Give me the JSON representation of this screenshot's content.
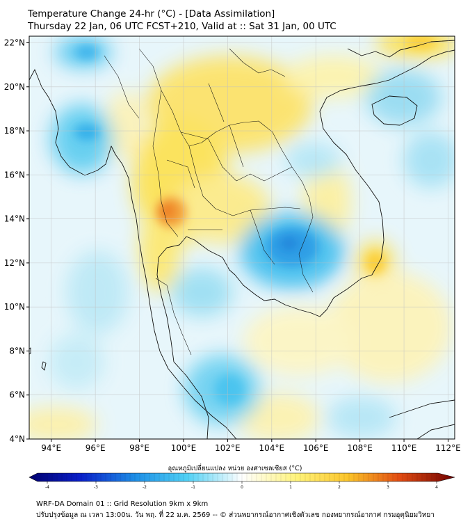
{
  "title": {
    "line1": "Temperature Change 24-hr (°C) - [Data Assimilation]",
    "line2": "Thursday 22 Jan, 06 UTC FCST+210, Valid at :: Sat 31 Jan, 00 UTC"
  },
  "map": {
    "lat_ticks": [
      "22°N",
      "20°N",
      "18°N",
      "16°N",
      "14°N",
      "12°N",
      "10°N",
      "8°N",
      "6°N",
      "4°N"
    ],
    "lon_ticks": [
      "94°E",
      "96°E",
      "98°E",
      "100°E",
      "102°E",
      "104°E",
      "106°E",
      "108°E",
      "110°E",
      "112°E"
    ],
    "lat_range": [
      4,
      22.3
    ],
    "lon_range": [
      93,
      112.3
    ],
    "grid": true
  },
  "colorbar": {
    "label": "อุณหภูมิเปลี่ยนแปลง หน่วย องศาเซลเซียส (°C)",
    "tick_labels": [
      "-4",
      "-3",
      "-2",
      "-1",
      "0",
      "1",
      "2",
      "3",
      "4"
    ],
    "range": [
      -4,
      4
    ],
    "colors": {
      "cold_extreme": "#00006e",
      "cold": "#1565d8",
      "cool": "#35c4f0",
      "neutral": "#ffffff",
      "warm": "#fde84a",
      "hot": "#f08a1c",
      "hot_extreme": "#7a0000"
    }
  },
  "footer": {
    "line1": "WRF-DA Domain 01 :: Grid Resolution 9km x 9km",
    "line2": "ปรับปรุงข้อมูล ณ เวลา 13:00น. วัน พฤ. ที่ 22 ม.ค. 2569 -- © ส่วนพยากรณ์อากาศเชิงตัวเลข กองพยากรณ์อากาศ กรมอุตุนิยมวิทยา"
  }
}
